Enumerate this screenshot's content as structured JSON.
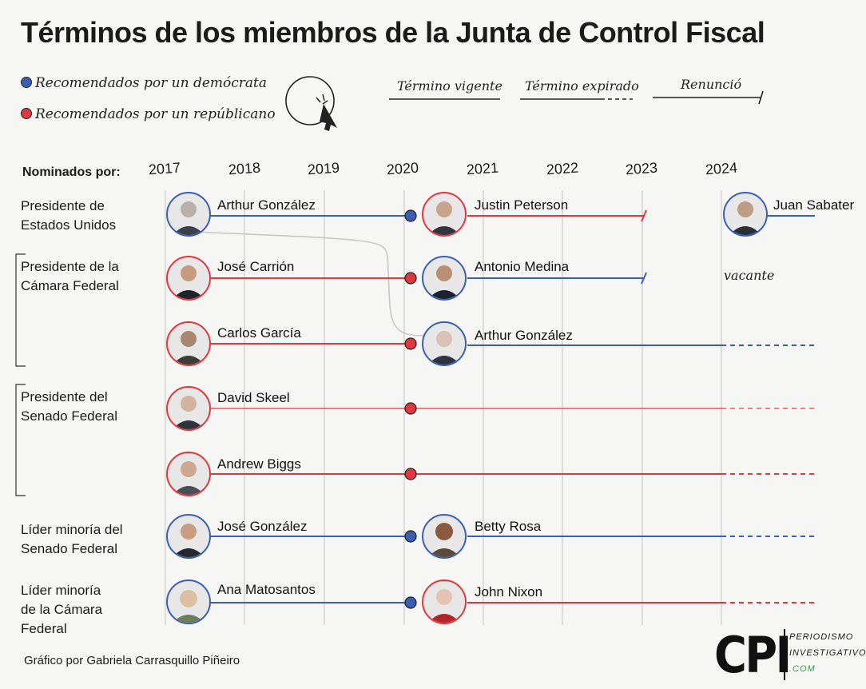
{
  "title": "Términos de los miembros de la Junta de Control Fiscal",
  "legend": {
    "democrat": "Recomendados por un demócrata",
    "republican": "Recomendados por un repúblicano",
    "current_term": "Término vigente",
    "expired_term": "Término expirado",
    "resigned": "Renunció"
  },
  "colors": {
    "democrat": "#3b5fb0",
    "republican": "#e0383e",
    "grid": "#d4d4d4"
  },
  "header": {
    "nominated_by": "Nominados por:"
  },
  "years": [
    "2017",
    "2018",
    "2019",
    "2020",
    "2021",
    "2022",
    "2023",
    "2024"
  ],
  "groups": [
    {
      "label": "Presidente de Estados Unidos"
    },
    {
      "label": "Presidente de la Cámara Federal"
    },
    {
      "label": "Presidente del Senado Federal"
    },
    {
      "label": "Líder minoría del Senado Federal"
    },
    {
      "label": "Líder minoría de la Cámara Federal"
    }
  ],
  "members": {
    "arthur_1": {
      "name": "Arthur González",
      "party": "democrat"
    },
    "justin": {
      "name": "Justin Peterson",
      "party": "republican"
    },
    "juan": {
      "name": "Juan Sabater",
      "party": "democrat"
    },
    "jose_c": {
      "name": "José Carrión",
      "party": "republican"
    },
    "antonio": {
      "name": "Antonio Medina",
      "party": "democrat"
    },
    "carlos": {
      "name": "Carlos García",
      "party": "republican"
    },
    "arthur_2": {
      "name": "Arthur González",
      "party": "democrat"
    },
    "david": {
      "name": "David Skeel",
      "party": "republican"
    },
    "andrew": {
      "name": "Andrew Biggs",
      "party": "republican"
    },
    "jose_g": {
      "name": "José González",
      "party": "democrat"
    },
    "betty": {
      "name": "Betty Rosa",
      "party": "democrat"
    },
    "ana": {
      "name": "Ana Matosantos",
      "party": "democrat"
    },
    "john": {
      "name": "John Nixon",
      "party": "republican"
    }
  },
  "vacant_label": "vacante",
  "credit": "Gráfico por Gabriela Carrasquillo Piñeiro",
  "logo": {
    "mark": "CPI",
    "line1": "PERIODISMO",
    "line2": "INVESTIGATIVO",
    "line3": ".COM"
  }
}
